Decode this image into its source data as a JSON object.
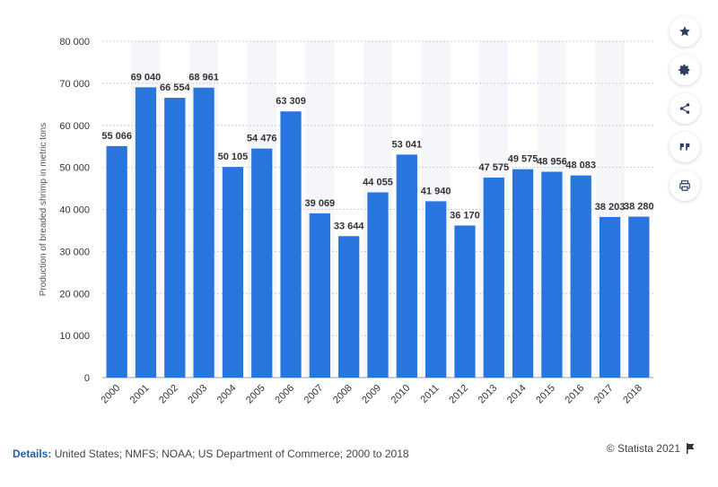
{
  "chart_data": {
    "type": "bar",
    "title": "",
    "xlabel": "",
    "ylabel": "Production of breaded shrimp in metric tons",
    "ylim": [
      0,
      80000
    ],
    "yticks": [
      0,
      10000,
      20000,
      30000,
      40000,
      50000,
      60000,
      70000,
      80000
    ],
    "ytick_labels": [
      "0",
      "10 000",
      "20 000",
      "30 000",
      "40 000",
      "50 000",
      "60 000",
      "70 000",
      "80 000"
    ],
    "categories": [
      "2000",
      "2001",
      "2002",
      "2003",
      "2004",
      "2005",
      "2006",
      "2007",
      "2008",
      "2009",
      "2010",
      "2011",
      "2012",
      "2013",
      "2014",
      "2015",
      "2016",
      "2017",
      "2018"
    ],
    "values": [
      55066,
      69040,
      66554,
      68961,
      50105,
      54476,
      63309,
      39069,
      33644,
      44055,
      53041,
      41940,
      36170,
      47575,
      49575,
      48956,
      48083,
      38203,
      38280
    ],
    "value_labels": [
      "55 066",
      "69 040",
      "66 554",
      "68 961",
      "50 105",
      "54 476",
      "63 309",
      "39 069",
      "33 644",
      "44 055",
      "53 041",
      "41 940",
      "36 170",
      "47 575",
      "49 575",
      "48 956",
      "48 083",
      "38 203",
      "38 280"
    ],
    "bar_color": "#2876dd"
  },
  "sidebar": {
    "buttons": [
      {
        "name": "star-icon"
      },
      {
        "name": "gear-icon"
      },
      {
        "name": "share-icon"
      },
      {
        "name": "quote-icon"
      },
      {
        "name": "print-icon"
      }
    ]
  },
  "footer": {
    "details_label": "Details:",
    "details_text": "United States; NMFS; NOAA; US Department of Commerce; 2000 to 2018",
    "copyright": "© Statista 2021"
  },
  "colors": {
    "bar": "#2876dd",
    "band": "#f4f6f9",
    "accent": "#1f5fa8",
    "icon": "#2c3e63"
  }
}
